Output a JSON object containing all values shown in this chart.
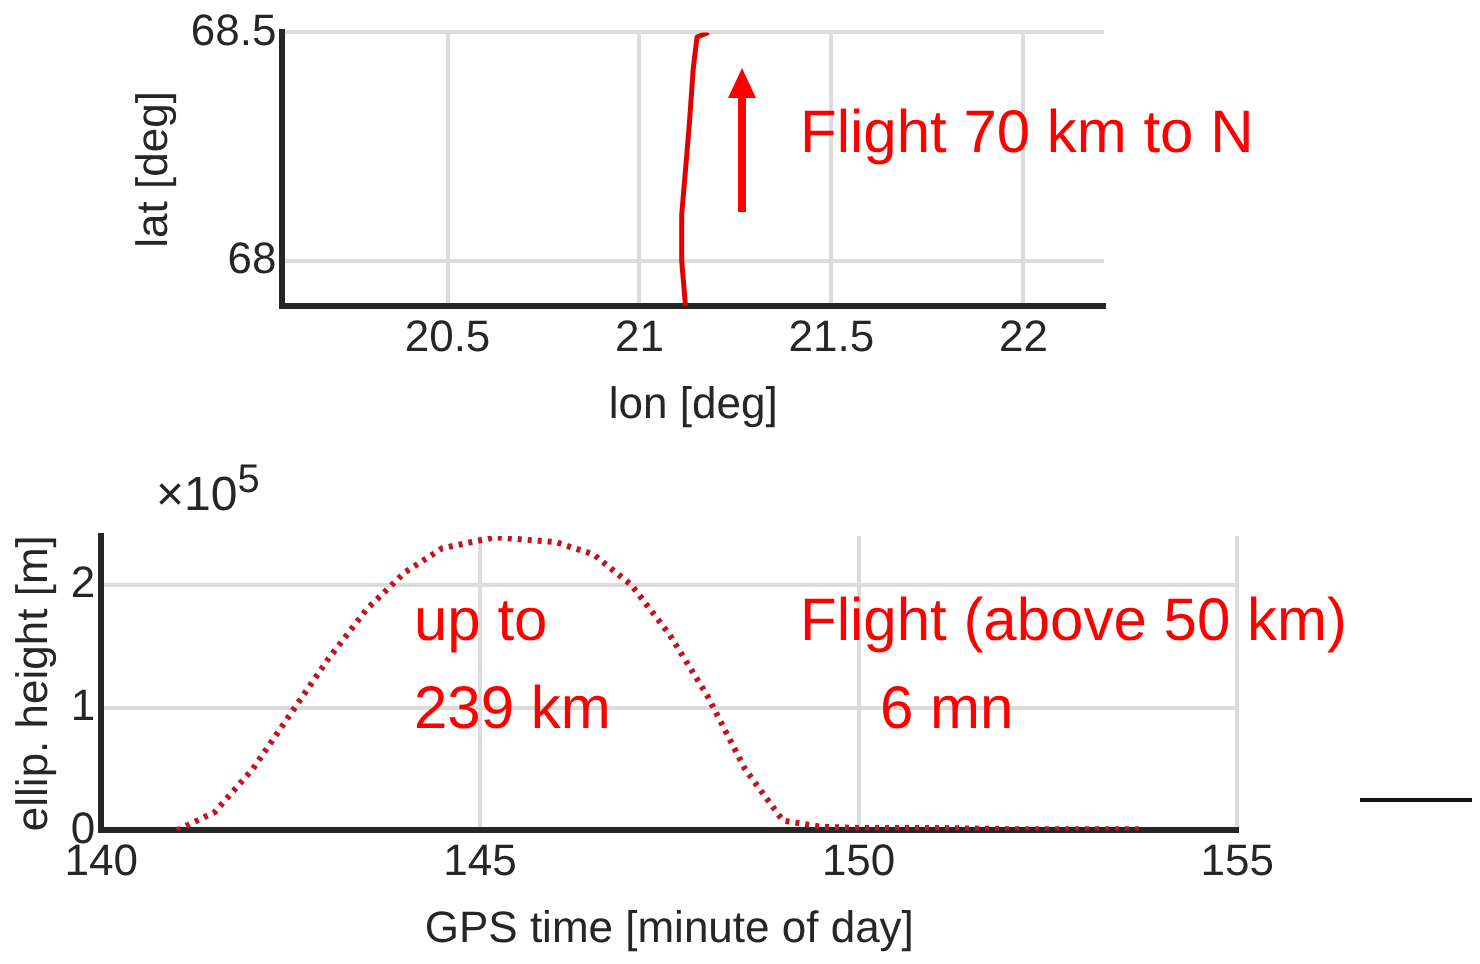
{
  "chart_data": [
    {
      "type": "line",
      "xlabel": "lon [deg]",
      "ylabel": "lat [deg]",
      "annotations": [
        "Flight 70 km to N"
      ],
      "xlim": [
        20.07,
        22.21
      ],
      "ylim": [
        67.9,
        68.5
      ],
      "xticks": [
        20.5,
        21,
        21.5,
        22
      ],
      "yticks": [
        68,
        68.5
      ],
      "grid": true,
      "marker": "none",
      "line_style": "solid",
      "series": [
        {
          "color": "#e00000",
          "x": [
            21.12,
            21.11,
            21.11,
            21.12,
            21.13,
            21.14,
            21.15,
            21.18
          ],
          "values": [
            67.9,
            68.0,
            68.1,
            68.2,
            68.3,
            68.42,
            68.49,
            68.5
          ]
        }
      ]
    },
    {
      "type": "line",
      "xlabel": "GPS time [minute of day]",
      "ylabel": "ellip. height [m]",
      "annotations": [
        "×10$^{5}$",
        "up to",
        "239 km",
        "Flight (above 50 km)",
        "6 mn"
      ],
      "xlim": [
        140,
        155
      ],
      "ylim": [
        0,
        2.4
      ],
      "xticks": [
        140,
        145,
        150,
        155
      ],
      "yticks": [
        0,
        1,
        2
      ],
      "grid": true,
      "marker": "none",
      "line_style": "dotted",
      "series": [
        {
          "color": "#c0141e",
          "x": [
            141,
            141.5,
            142,
            142.5,
            143,
            143.5,
            144,
            144.5,
            145.2,
            146,
            146.5,
            147,
            147.5,
            148,
            148.5,
            149,
            149.5,
            150,
            151,
            152,
            153,
            153.7
          ],
          "values": [
            0,
            0.15,
            0.5,
            0.95,
            1.4,
            1.8,
            2.1,
            2.3,
            2.39,
            2.35,
            2.25,
            2.0,
            1.6,
            1.1,
            0.5,
            0.08,
            0.03,
            0.02,
            0.02,
            0.01,
            0.01,
            0.01
          ]
        }
      ]
    }
  ]
}
